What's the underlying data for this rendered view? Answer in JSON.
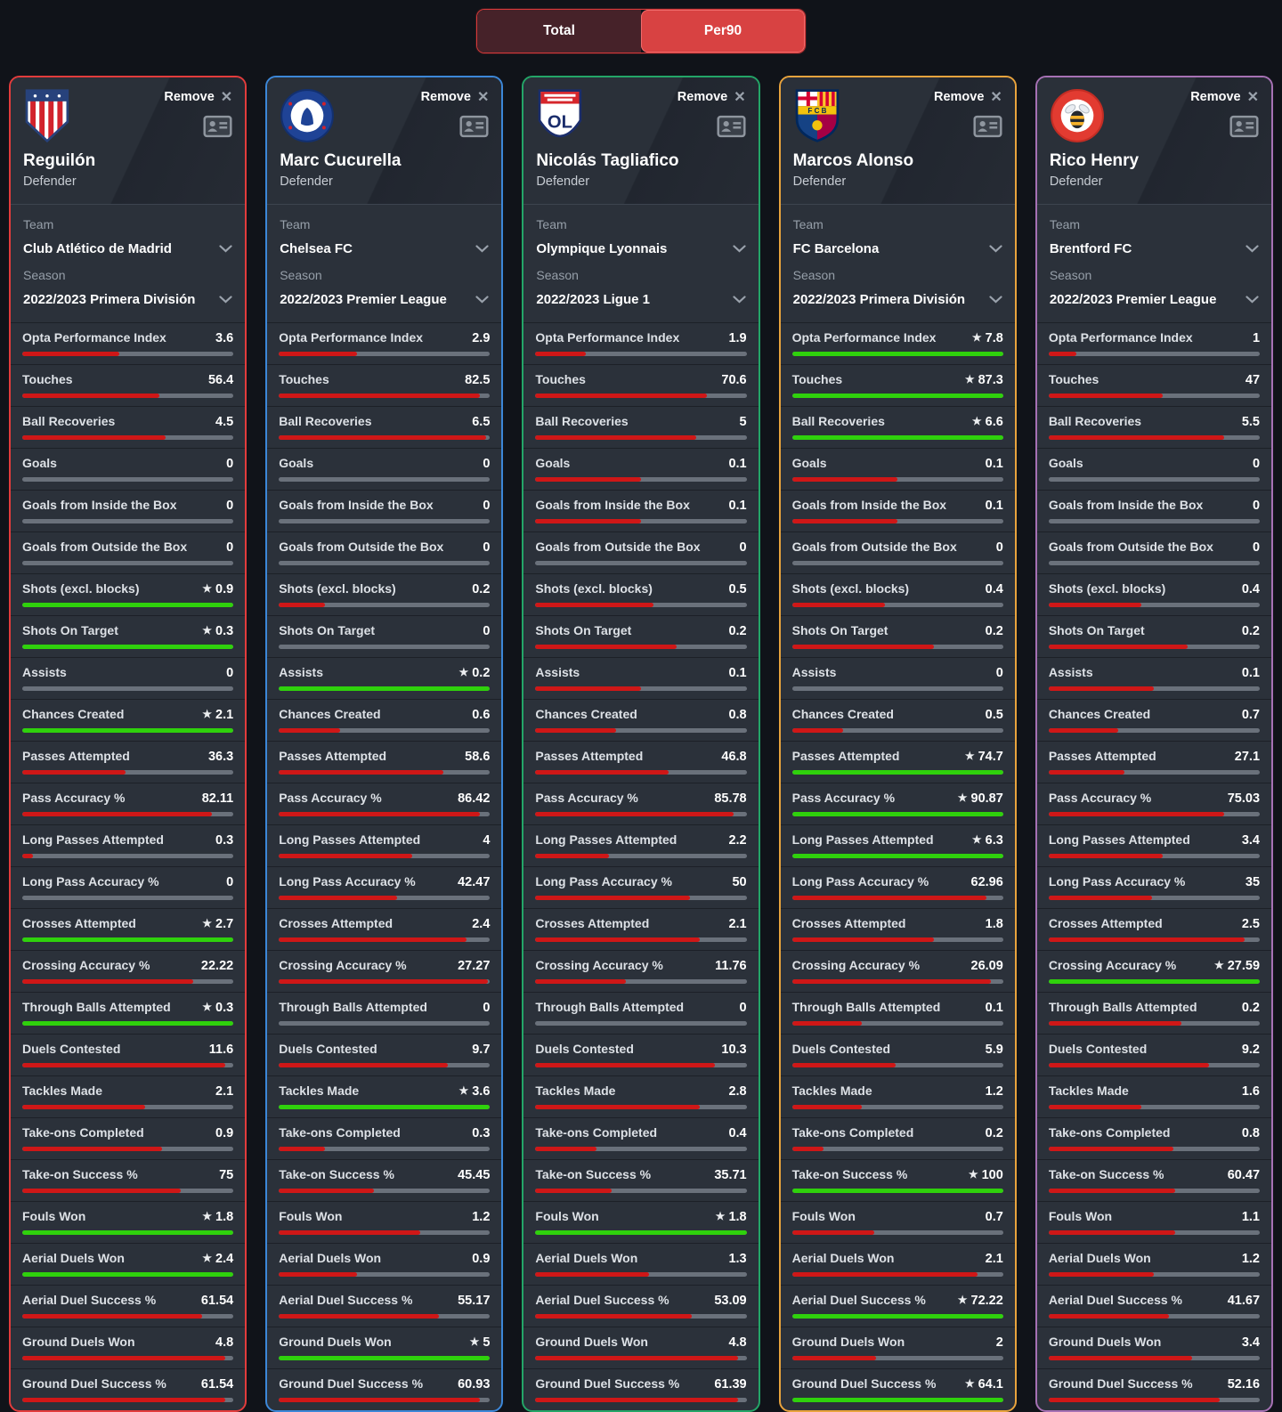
{
  "toggle": {
    "options": [
      {
        "label": "Total",
        "active": false
      },
      {
        "label": "Per90",
        "active": true
      }
    ]
  },
  "shared": {
    "remove_label": "Remove",
    "team_label": "Team",
    "season_label": "Season"
  },
  "colors": {
    "page_bg": "#101319",
    "card_bg": "#2b313a",
    "bar_track": "#6a717b",
    "bar_fill": "#cf1717",
    "bar_best": "#2fd10c",
    "toggle_border": "#d63a3a",
    "toggle_inactive_bg": "#462229",
    "toggle_active_bg": "#d84242"
  },
  "stat_labels": [
    "Opta Performance Index",
    "Touches",
    "Ball Recoveries",
    "Goals",
    "Goals from Inside the Box",
    "Goals from Outside the Box",
    "Shots (excl. blocks)",
    "Shots On Target",
    "Assists",
    "Chances Created",
    "Passes Attempted",
    "Pass Accuracy %",
    "Long Passes Attempted",
    "Long Pass Accuracy %",
    "Crosses Attempted",
    "Crossing Accuracy %",
    "Through Balls Attempted",
    "Duels Contested",
    "Tackles Made",
    "Take-ons Completed",
    "Take-on Success %",
    "Fouls Won",
    "Aerial Duels Won",
    "Aerial Duel Success %",
    "Ground Duels Won",
    "Ground Duel Success %"
  ],
  "players": [
    {
      "name": "Reguilón",
      "position": "Defender",
      "team": "Club Atlético de Madrid",
      "season": "2022/2023 Primera División",
      "accent": "#e23c3c",
      "crest": "atletico-madrid-crest",
      "stats": [
        {
          "v": "3.6",
          "pct": 46,
          "star": false
        },
        {
          "v": "56.4",
          "pct": 65,
          "star": false
        },
        {
          "v": "4.5",
          "pct": 68,
          "star": false
        },
        {
          "v": "0",
          "pct": 0,
          "star": false
        },
        {
          "v": "0",
          "pct": 0,
          "star": false
        },
        {
          "v": "0",
          "pct": 0,
          "star": false
        },
        {
          "v": "0.9",
          "pct": 100,
          "star": true
        },
        {
          "v": "0.3",
          "pct": 100,
          "star": true
        },
        {
          "v": "0",
          "pct": 0,
          "star": false
        },
        {
          "v": "2.1",
          "pct": 100,
          "star": true
        },
        {
          "v": "36.3",
          "pct": 49,
          "star": false
        },
        {
          "v": "82.11",
          "pct": 90,
          "star": false
        },
        {
          "v": "0.3",
          "pct": 5,
          "star": false
        },
        {
          "v": "0",
          "pct": 0,
          "star": false
        },
        {
          "v": "2.7",
          "pct": 100,
          "star": true
        },
        {
          "v": "22.22",
          "pct": 81,
          "star": false
        },
        {
          "v": "0.3",
          "pct": 100,
          "star": true
        },
        {
          "v": "11.6",
          "pct": 96,
          "star": false
        },
        {
          "v": "2.1",
          "pct": 58,
          "star": false
        },
        {
          "v": "0.9",
          "pct": 66,
          "star": false
        },
        {
          "v": "75",
          "pct": 75,
          "star": false
        },
        {
          "v": "1.8",
          "pct": 100,
          "star": true
        },
        {
          "v": "2.4",
          "pct": 100,
          "star": true
        },
        {
          "v": "61.54",
          "pct": 85,
          "star": false
        },
        {
          "v": "4.8",
          "pct": 96,
          "star": false
        },
        {
          "v": "61.54",
          "pct": 96,
          "star": false
        }
      ]
    },
    {
      "name": "Marc Cucurella",
      "position": "Defender",
      "team": "Chelsea FC",
      "season": "2022/2023 Premier League",
      "accent": "#3c87d8",
      "crest": "chelsea-crest",
      "stats": [
        {
          "v": "2.9",
          "pct": 37,
          "star": false
        },
        {
          "v": "82.5",
          "pct": 95,
          "star": false
        },
        {
          "v": "6.5",
          "pct": 98,
          "star": false
        },
        {
          "v": "0",
          "pct": 0,
          "star": false
        },
        {
          "v": "0",
          "pct": 0,
          "star": false
        },
        {
          "v": "0",
          "pct": 0,
          "star": false
        },
        {
          "v": "0.2",
          "pct": 22,
          "star": false
        },
        {
          "v": "0",
          "pct": 0,
          "star": false
        },
        {
          "v": "0.2",
          "pct": 100,
          "star": true
        },
        {
          "v": "0.6",
          "pct": 29,
          "star": false
        },
        {
          "v": "58.6",
          "pct": 78,
          "star": false
        },
        {
          "v": "86.42",
          "pct": 95,
          "star": false
        },
        {
          "v": "4",
          "pct": 63,
          "star": false
        },
        {
          "v": "42.47",
          "pct": 56,
          "star": false
        },
        {
          "v": "2.4",
          "pct": 89,
          "star": false
        },
        {
          "v": "27.27",
          "pct": 99,
          "star": false
        },
        {
          "v": "0",
          "pct": 0,
          "star": false
        },
        {
          "v": "9.7",
          "pct": 80,
          "star": false
        },
        {
          "v": "3.6",
          "pct": 100,
          "star": true
        },
        {
          "v": "0.3",
          "pct": 22,
          "star": false
        },
        {
          "v": "45.45",
          "pct": 45,
          "star": false
        },
        {
          "v": "1.2",
          "pct": 67,
          "star": false
        },
        {
          "v": "0.9",
          "pct": 37,
          "star": false
        },
        {
          "v": "55.17",
          "pct": 76,
          "star": false
        },
        {
          "v": "5",
          "pct": 100,
          "star": true
        },
        {
          "v": "60.93",
          "pct": 95,
          "star": false
        }
      ]
    },
    {
      "name": "Nicolás Tagliafico",
      "position": "Defender",
      "team": "Olympique Lyonnais",
      "season": "2022/2023 Ligue 1",
      "accent": "#23a567",
      "crest": "lyon-crest",
      "stats": [
        {
          "v": "1.9",
          "pct": 24,
          "star": false
        },
        {
          "v": "70.6",
          "pct": 81,
          "star": false
        },
        {
          "v": "5",
          "pct": 76,
          "star": false
        },
        {
          "v": "0.1",
          "pct": 50,
          "star": false
        },
        {
          "v": "0.1",
          "pct": 50,
          "star": false
        },
        {
          "v": "0",
          "pct": 0,
          "star": false
        },
        {
          "v": "0.5",
          "pct": 56,
          "star": false
        },
        {
          "v": "0.2",
          "pct": 67,
          "star": false
        },
        {
          "v": "0.1",
          "pct": 50,
          "star": false
        },
        {
          "v": "0.8",
          "pct": 38,
          "star": false
        },
        {
          "v": "46.8",
          "pct": 63,
          "star": false
        },
        {
          "v": "85.78",
          "pct": 94,
          "star": false
        },
        {
          "v": "2.2",
          "pct": 35,
          "star": false
        },
        {
          "v": "50",
          "pct": 73,
          "star": false
        },
        {
          "v": "2.1",
          "pct": 78,
          "star": false
        },
        {
          "v": "11.76",
          "pct": 43,
          "star": false
        },
        {
          "v": "0",
          "pct": 0,
          "star": false
        },
        {
          "v": "10.3",
          "pct": 85,
          "star": false
        },
        {
          "v": "2.8",
          "pct": 78,
          "star": false
        },
        {
          "v": "0.4",
          "pct": 29,
          "star": false
        },
        {
          "v": "35.71",
          "pct": 36,
          "star": false
        },
        {
          "v": "1.8",
          "pct": 100,
          "star": true
        },
        {
          "v": "1.3",
          "pct": 54,
          "star": false
        },
        {
          "v": "53.09",
          "pct": 74,
          "star": false
        },
        {
          "v": "4.8",
          "pct": 96,
          "star": false
        },
        {
          "v": "61.39",
          "pct": 96,
          "star": false
        }
      ]
    },
    {
      "name": "Marcos Alonso",
      "position": "Defender",
      "team": "FC Barcelona",
      "season": "2022/2023 Primera División",
      "accent": "#e8a33d",
      "crest": "barcelona-crest",
      "stats": [
        {
          "v": "7.8",
          "pct": 100,
          "star": true
        },
        {
          "v": "87.3",
          "pct": 100,
          "star": true
        },
        {
          "v": "6.6",
          "pct": 100,
          "star": true
        },
        {
          "v": "0.1",
          "pct": 50,
          "star": false
        },
        {
          "v": "0.1",
          "pct": 50,
          "star": false
        },
        {
          "v": "0",
          "pct": 0,
          "star": false
        },
        {
          "v": "0.4",
          "pct": 44,
          "star": false
        },
        {
          "v": "0.2",
          "pct": 67,
          "star": false
        },
        {
          "v": "0",
          "pct": 0,
          "star": false
        },
        {
          "v": "0.5",
          "pct": 24,
          "star": false
        },
        {
          "v": "74.7",
          "pct": 100,
          "star": true
        },
        {
          "v": "90.87",
          "pct": 100,
          "star": true
        },
        {
          "v": "6.3",
          "pct": 100,
          "star": true
        },
        {
          "v": "62.96",
          "pct": 92,
          "star": false
        },
        {
          "v": "1.8",
          "pct": 67,
          "star": false
        },
        {
          "v": "26.09",
          "pct": 94,
          "star": false
        },
        {
          "v": "0.1",
          "pct": 33,
          "star": false
        },
        {
          "v": "5.9",
          "pct": 49,
          "star": false
        },
        {
          "v": "1.2",
          "pct": 33,
          "star": false
        },
        {
          "v": "0.2",
          "pct": 15,
          "star": false
        },
        {
          "v": "100",
          "pct": 100,
          "star": true
        },
        {
          "v": "0.7",
          "pct": 39,
          "star": false
        },
        {
          "v": "2.1",
          "pct": 88,
          "star": false
        },
        {
          "v": "72.22",
          "pct": 100,
          "star": true
        },
        {
          "v": "2",
          "pct": 40,
          "star": false
        },
        {
          "v": "64.1",
          "pct": 100,
          "star": true
        }
      ]
    },
    {
      "name": "Rico Henry",
      "position": "Defender",
      "team": "Brentford FC",
      "season": "2022/2023 Premier League",
      "accent": "#a671b4",
      "crest": "brentford-crest",
      "stats": [
        {
          "v": "1",
          "pct": 13,
          "star": false
        },
        {
          "v": "47",
          "pct": 54,
          "star": false
        },
        {
          "v": "5.5",
          "pct": 83,
          "star": false
        },
        {
          "v": "0",
          "pct": 0,
          "star": false
        },
        {
          "v": "0",
          "pct": 0,
          "star": false
        },
        {
          "v": "0",
          "pct": 0,
          "star": false
        },
        {
          "v": "0.4",
          "pct": 44,
          "star": false
        },
        {
          "v": "0.2",
          "pct": 66,
          "star": false
        },
        {
          "v": "0.1",
          "pct": 50,
          "star": false
        },
        {
          "v": "0.7",
          "pct": 33,
          "star": false
        },
        {
          "v": "27.1",
          "pct": 36,
          "star": false
        },
        {
          "v": "75.03",
          "pct": 83,
          "star": false
        },
        {
          "v": "3.4",
          "pct": 54,
          "star": false
        },
        {
          "v": "35",
          "pct": 49,
          "star": false
        },
        {
          "v": "2.5",
          "pct": 93,
          "star": false
        },
        {
          "v": "27.59",
          "pct": 100,
          "star": true
        },
        {
          "v": "0.2",
          "pct": 63,
          "star": false
        },
        {
          "v": "9.2",
          "pct": 76,
          "star": false
        },
        {
          "v": "1.6",
          "pct": 44,
          "star": false
        },
        {
          "v": "0.8",
          "pct": 59,
          "star": false
        },
        {
          "v": "60.47",
          "pct": 60,
          "star": false
        },
        {
          "v": "1.1",
          "pct": 60,
          "star": false
        },
        {
          "v": "1.2",
          "pct": 50,
          "star": false
        },
        {
          "v": "41.67",
          "pct": 57,
          "star": false
        },
        {
          "v": "3.4",
          "pct": 68,
          "star": false
        },
        {
          "v": "52.16",
          "pct": 81,
          "star": false
        }
      ]
    }
  ]
}
